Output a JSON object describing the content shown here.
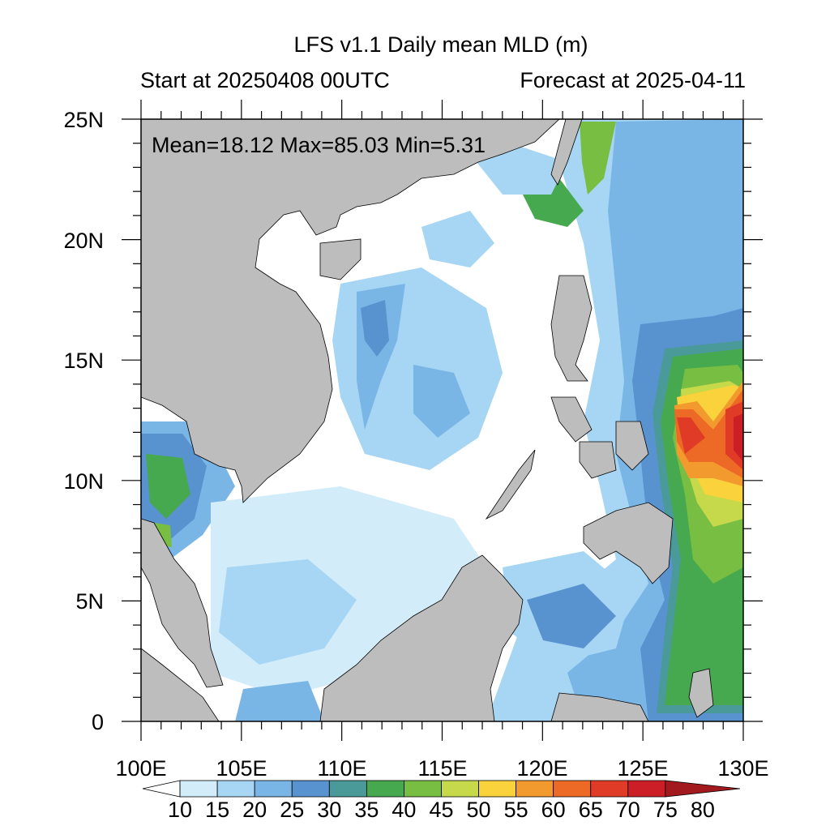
{
  "title": "LFS v1.1 Daily mean MLD (m)",
  "subtitle_left": "Start at 20250408 00UTC",
  "subtitle_right": "Forecast at 2025-04-11",
  "stats": "Mean=18.12  Max=85.03  Min=5.31",
  "lon_labels": [
    "100E",
    "105E",
    "110E",
    "115E",
    "120E",
    "125E",
    "130E"
  ],
  "lat_labels": [
    "25N",
    "20N",
    "15N",
    "10N",
    "5N",
    "0"
  ],
  "colorbar": {
    "labels": [
      "10",
      "15",
      "20",
      "25",
      "30",
      "35",
      "40",
      "45",
      "50",
      "55",
      "60",
      "65",
      "70",
      "75",
      "80"
    ],
    "colors": [
      "#ffffff",
      "#d2ecfa",
      "#a6d6f3",
      "#79b6e6",
      "#5893cf",
      "#4a9a9a",
      "#46a84f",
      "#78be42",
      "#c5d94a",
      "#f9d23c",
      "#f39a2e",
      "#ec6a25",
      "#e03b27",
      "#cc1e27",
      "#a31a1e"
    ]
  },
  "colors": {
    "land": "#bdbdbd",
    "ocean": "#ffffff"
  }
}
